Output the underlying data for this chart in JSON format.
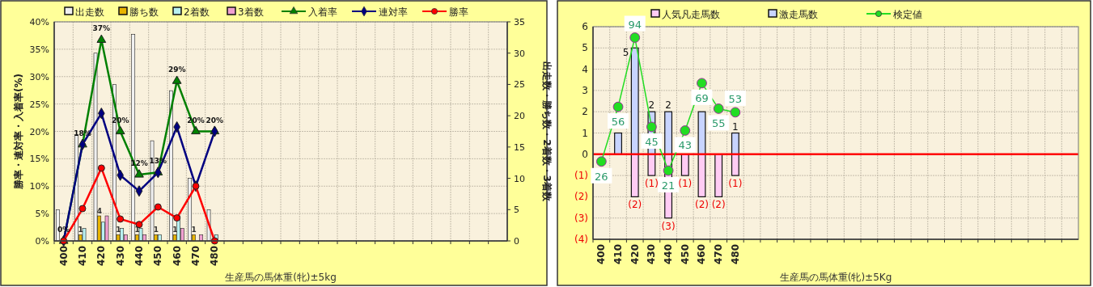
{
  "chart_data": [
    {
      "type": "bar",
      "xlabel": "生産馬の馬体重(牝)±5kg",
      "ylabel": "勝率・連対率・入着率(%)",
      "y2label": "出走数・勝ち数・2着数・3着数",
      "categories": [
        "400",
        "410",
        "420",
        "430",
        "440",
        "450",
        "460",
        "470",
        "480",
        null,
        null,
        null,
        null,
        null,
        null,
        null,
        null,
        null,
        null,
        null,
        null,
        null,
        null,
        null
      ],
      "ylim": [
        0,
        40
      ],
      "yticks": [
        {
          "value": 0,
          "label": "0%"
        },
        {
          "value": 5,
          "label": "5%"
        },
        {
          "value": 10,
          "label": "10%"
        },
        {
          "value": 15,
          "label": "15%"
        },
        {
          "value": 20,
          "label": "20%"
        },
        {
          "value": 25,
          "label": "25%"
        },
        {
          "value": 30,
          "label": "30%"
        },
        {
          "value": 35,
          "label": "35%"
        },
        {
          "value": 40,
          "label": "40%"
        }
      ],
      "y2lim": [
        0,
        35
      ],
      "y2ticks": [
        0,
        5,
        10,
        15,
        20,
        25,
        30,
        35
      ],
      "grid": true,
      "legend": "top",
      "series": [
        {
          "name": "出走数",
          "axis": "y2",
          "color": "#f0f0f0",
          "values": [
            5,
            17,
            30,
            25,
            33,
            16,
            24,
            10,
            5,
            null,
            null,
            null,
            null,
            null,
            null,
            null,
            null,
            null,
            null,
            null,
            null,
            null,
            null,
            null
          ]
        },
        {
          "name": "勝ち数",
          "axis": "y2",
          "color": "#e8b400",
          "values": [
            0,
            1,
            4,
            1,
            1,
            1,
            1,
            1,
            0,
            null,
            null,
            null,
            null,
            null,
            null,
            null,
            null,
            null,
            null,
            null,
            null,
            null,
            null,
            null
          ],
          "value_labels": [
            null,
            "1",
            "4",
            "1",
            "1",
            "1",
            "1",
            "1",
            null,
            null,
            null,
            null,
            null,
            null,
            null,
            null,
            null,
            null,
            null,
            null,
            null,
            null,
            null,
            null
          ]
        },
        {
          "name": "2着数",
          "axis": "y2",
          "color": "#b8f0f0",
          "values": [
            0,
            2,
            3,
            2,
            2,
            1,
            4,
            0,
            1,
            null,
            null,
            null,
            null,
            null,
            null,
            null,
            null,
            null,
            null,
            null,
            null,
            null,
            null,
            null
          ]
        },
        {
          "name": "3着数",
          "axis": "y2",
          "color": "#f0a0d0",
          "values": [
            0,
            0,
            4,
            1,
            1,
            0,
            2,
            1,
            0,
            null,
            null,
            null,
            null,
            null,
            null,
            null,
            null,
            null,
            null,
            null,
            null,
            null,
            null,
            null
          ]
        },
        {
          "name": "入着率",
          "type": "line",
          "marker": "triangle",
          "color": "#008000",
          "values": [
            0,
            17.6,
            36.7,
            20,
            12.1,
            12.5,
            29.2,
            20,
            20,
            null,
            null,
            null,
            null,
            null,
            null,
            null,
            null,
            null,
            null,
            null,
            null,
            null,
            null,
            null
          ],
          "value_labels": [
            "0%",
            "18%",
            "37%",
            "20%",
            "12%",
            "13%",
            "29%",
            "20%",
            "20%",
            null,
            null,
            null,
            null,
            null,
            null,
            null,
            null,
            null,
            null,
            null,
            null,
            null,
            null,
            null
          ]
        },
        {
          "name": "連対率",
          "type": "line",
          "marker": "diamond",
          "color": "#000080",
          "values": [
            0,
            17.6,
            23.3,
            12,
            9.1,
            12.5,
            20.8,
            10,
            20,
            null,
            null,
            null,
            null,
            null,
            null,
            null,
            null,
            null,
            null,
            null,
            null,
            null,
            null,
            null
          ]
        },
        {
          "name": "勝率",
          "type": "line",
          "marker": "circle",
          "color": "#ff0000",
          "values": [
            0,
            5.9,
            13.3,
            4,
            3,
            6.2,
            4.2,
            10,
            0,
            null,
            null,
            null,
            null,
            null,
            null,
            null,
            null,
            null,
            null,
            null,
            null,
            null,
            null,
            null
          ]
        }
      ]
    },
    {
      "type": "bar",
      "xlabel": "生産馬の馬体重(牝)±5Kg",
      "stacked": true,
      "categories": [
        "400",
        "410",
        "420",
        "430",
        "440",
        "450",
        "460",
        "470",
        "480",
        null,
        null,
        null,
        null,
        null,
        null,
        null,
        null,
        null,
        null,
        null,
        null,
        null,
        null,
        null,
        null,
        null,
        null,
        null,
        null
      ],
      "ylim": [
        -4,
        6
      ],
      "yticks": [
        {
          "value": -4,
          "label": "(4)"
        },
        {
          "value": -3,
          "label": "(3)"
        },
        {
          "value": -2,
          "label": "(2)"
        },
        {
          "value": -1,
          "label": "(1)"
        },
        0,
        1,
        2,
        3,
        4,
        5,
        6
      ],
      "y2lim": [
        -16.7,
        100
      ],
      "grid": true,
      "legend": "top",
      "ref_lines": [
        {
          "axis": "y",
          "value": 0,
          "color": "#ff0000"
        }
      ],
      "series": [
        {
          "name": "人気凡走馬数",
          "color": "#ffccf4",
          "values": [
            0,
            0,
            -2,
            -1,
            -3,
            -1,
            -2,
            -2,
            -1,
            null,
            null,
            null,
            null,
            null,
            null,
            null,
            null,
            null,
            null,
            null,
            null,
            null,
            null,
            null,
            null,
            null,
            null,
            null,
            null
          ],
          "value_labels": [
            null,
            null,
            "(2)",
            "(1)",
            "(3)",
            "(1)",
            "(2)",
            "(2)",
            "(1)",
            null,
            null,
            null,
            null,
            null,
            null,
            null,
            null,
            null,
            null,
            null,
            null,
            null,
            null,
            null,
            null,
            null,
            null,
            null,
            null
          ]
        },
        {
          "name": "激走馬数",
          "color": "#c8d4ff",
          "values": [
            0,
            1,
            5,
            2,
            2,
            0,
            2,
            0,
            1,
            null,
            null,
            null,
            null,
            null,
            null,
            null,
            null,
            null,
            null,
            null,
            null,
            null,
            null,
            null,
            null,
            null,
            null,
            null,
            null
          ],
          "value_labels": [
            null,
            null,
            "5",
            "2",
            "2",
            null,
            null,
            null,
            "1",
            null,
            null,
            null,
            null,
            null,
            null,
            null,
            null,
            null,
            null,
            null,
            null,
            null,
            null,
            null,
            null,
            null,
            null,
            null,
            null
          ]
        },
        {
          "name": "検定値",
          "type": "line",
          "axis": "y2",
          "marker": "circle",
          "color": "#22dd22",
          "values": [
            26,
            56,
            94,
            45,
            21,
            43,
            69,
            55,
            53,
            null,
            null,
            null,
            null,
            null,
            null,
            null,
            null,
            null,
            null,
            null,
            null,
            null,
            null,
            null,
            null,
            null,
            null,
            null,
            null
          ],
          "value_labels": [
            "26",
            "56",
            "94",
            "45",
            "21",
            "43",
            "69",
            "55",
            "53",
            null,
            null,
            null,
            null,
            null,
            null,
            null,
            null,
            null,
            null,
            null,
            null,
            null,
            null,
            null,
            null,
            null,
            null,
            null,
            null
          ]
        }
      ]
    }
  ]
}
